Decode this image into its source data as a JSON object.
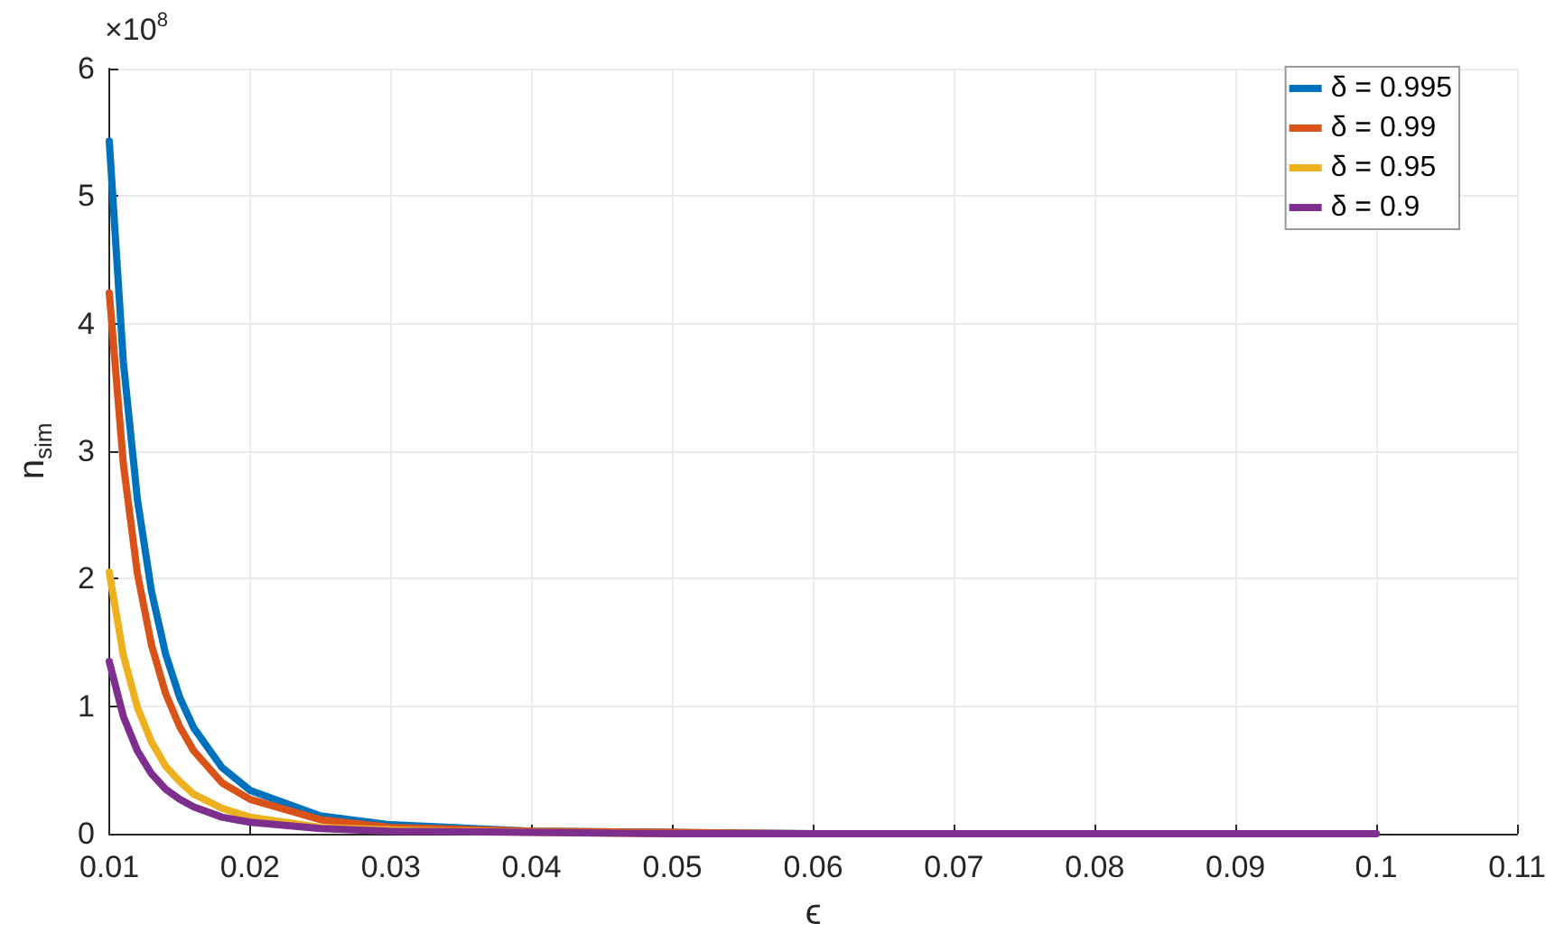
{
  "chart_data": {
    "type": "line",
    "xlabel": "ϵ",
    "ylabel": "n$_{sim}$",
    "annotations": [
      "×10$^{8}$"
    ],
    "x": [
      0.01,
      0.011,
      0.012,
      0.013,
      0.014,
      0.015,
      0.016,
      0.018,
      0.02,
      0.025,
      0.03,
      0.04,
      0.05,
      0.06,
      0.07,
      0.08,
      0.09,
      0.1
    ],
    "series": [
      {
        "name": "δ = 0.995",
        "color": "#0072bd",
        "values": [
          5.43,
          3.7,
          2.62,
          1.9,
          1.41,
          1.07,
          0.83,
          0.52,
          0.34,
          0.14,
          0.07,
          0.02,
          0.01,
          0,
          null,
          null,
          null,
          null
        ]
      },
      {
        "name": "δ = 0.99",
        "color": "#d95319",
        "values": [
          4.24,
          2.9,
          2.04,
          1.48,
          1.1,
          0.84,
          0.65,
          0.4,
          0.27,
          0.11,
          0.05,
          0.02,
          0.01,
          0,
          null,
          null,
          null,
          null
        ]
      },
      {
        "name": "δ = 0.95",
        "color": "#edb120",
        "values": [
          2.05,
          1.4,
          0.99,
          0.72,
          0.53,
          0.41,
          0.31,
          0.2,
          0.13,
          0.05,
          0.03,
          0.01,
          0,
          null,
          null,
          null,
          null,
          null
        ]
      },
      {
        "name": "δ = 0.9",
        "color": "#7e2f8e",
        "values": [
          1.35,
          0.92,
          0.65,
          0.47,
          0.35,
          0.27,
          0.21,
          0.13,
          0.09,
          0.04,
          0.02,
          0.01,
          0,
          0,
          0,
          0,
          0,
          0
        ]
      }
    ],
    "xlim": [
      0.01,
      0.11
    ],
    "xticks": [
      0.01,
      0.02,
      0.03,
      0.04,
      0.05,
      0.06,
      0.07,
      0.08,
      0.09,
      0.1,
      0.11
    ],
    "ylim": [
      0,
      6
    ],
    "yticks": [
      0,
      1,
      2,
      3,
      4,
      5,
      6
    ],
    "grid": true,
    "legend": "top right",
    "marker": "none",
    "line_style": "solid"
  }
}
